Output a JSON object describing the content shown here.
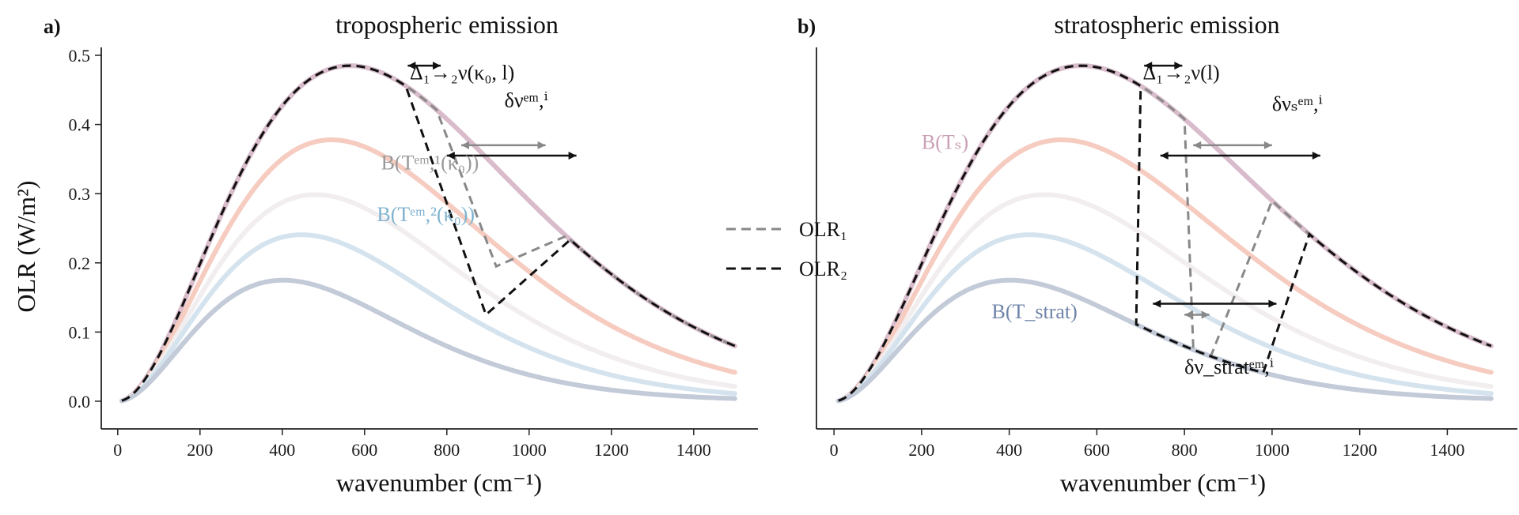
{
  "chart_data": [
    {
      "type": "line",
      "panel_label": "a)",
      "title": "tropospheric emission",
      "xlabel": "wavenumber (cm⁻¹)",
      "ylabel": "OLR (W/m²)",
      "xlim": [
        -40,
        1560
      ],
      "ylim": [
        -0.04,
        0.5
      ],
      "xticks": [
        "0",
        "200",
        "400",
        "600",
        "800",
        "1000",
        "1200",
        "1400"
      ],
      "yticks": [
        "0.0",
        "0.1",
        "0.2",
        "0.3",
        "0.4",
        "0.5"
      ],
      "planck_series": [
        {
          "T": 288,
          "color": "#d9bccb",
          "label": ""
        },
        {
          "T": 265,
          "color": "#f6cbc0",
          "label": ""
        },
        {
          "T": 245,
          "color": "#f2eeef",
          "label": "B(Tᵉᵐ,¹(κ₀))",
          "label_color": "#999999"
        },
        {
          "T": 228,
          "color": "#d4e3ee",
          "label": "B(Tᵉᵐ,²(κ₀))",
          "label_color": "#7fb3d0"
        },
        {
          "T": 205,
          "color": "#c3cad8",
          "label": ""
        }
      ],
      "olr_series": [
        {
          "name": "OLR₁",
          "color": "#888888",
          "window_x": [
            775,
            1090
          ],
          "min_x": 920,
          "min_y": 0.195
        },
        {
          "name": "OLR₂",
          "color": "#111111",
          "window_x": [
            700,
            1100
          ],
          "min_x": 895,
          "min_y": 0.125
        }
      ],
      "annotations": [
        {
          "text": "Δ₁→₂ν(κ₀, l)",
          "x": 710,
          "y": 0.465
        },
        {
          "text": "δνᵉᵐ,ⁱ",
          "x": 940,
          "y": 0.425
        },
        {
          "text": "B(Tᵉᵐ,¹(κ₀))",
          "x": 640,
          "y": 0.335
        },
        {
          "text": "B(Tᵉᵐ,²(κ₀))",
          "x": 630,
          "y": 0.26
        }
      ],
      "arrows": [
        {
          "from": [
            705,
            0.485
          ],
          "to": [
            785,
            0.485
          ],
          "color": "#111111"
        },
        {
          "from": [
            835,
            0.37
          ],
          "to": [
            1040,
            0.37
          ],
          "color": "#888888"
        },
        {
          "from": [
            800,
            0.355
          ],
          "to": [
            1115,
            0.355
          ],
          "color": "#111111"
        }
      ]
    },
    {
      "type": "line",
      "panel_label": "b)",
      "title": "stratospheric emission",
      "xlabel": "wavenumber (cm⁻¹)",
      "ylabel": "",
      "xlim": [
        -40,
        1560
      ],
      "ylim": [
        -0.04,
        0.5
      ],
      "xticks": [
        "0",
        "200",
        "400",
        "600",
        "800",
        "1000",
        "1200",
        "1400"
      ],
      "yticks": [],
      "planck_series": [
        {
          "T": 288,
          "color": "#d9bccb",
          "label": "B(Tₛ)",
          "label_color": "#c9a0b5"
        },
        {
          "T": 265,
          "color": "#f6cbc0",
          "label": ""
        },
        {
          "T": 245,
          "color": "#f2eeef",
          "label": ""
        },
        {
          "T": 228,
          "color": "#d4e3ee",
          "label": ""
        },
        {
          "T": 205,
          "color": "#c3cad8",
          "label": "B(T_strat)",
          "label_color": "#6f84aa"
        }
      ],
      "olr_series": [
        {
          "name": "OLR₁",
          "color": "#888888",
          "window_x": [
            800,
            1000
          ],
          "floor_x": 820,
          "min_x": 860
        },
        {
          "name": "OLR₂",
          "color": "#111111",
          "window_x": [
            700,
            1085
          ],
          "floor_x": 690,
          "min_x": 980
        }
      ],
      "annotations": [
        {
          "text": "Δ₁→₂ν(l)",
          "x": 705,
          "y": 0.465
        },
        {
          "text": "δνₛᵉᵐ,ⁱ",
          "x": 1000,
          "y": 0.42
        },
        {
          "text": "B(Tₛ)",
          "x": 200,
          "y": 0.365
        },
        {
          "text": "B(T_strat)",
          "x": 360,
          "y": 0.12
        },
        {
          "text": "δν_stratᵉᵐ,ⁱ",
          "x": 800,
          "y": 0.04
        }
      ],
      "arrows": [
        {
          "from": [
            708,
            0.485
          ],
          "to": [
            795,
            0.485
          ],
          "color": "#111111"
        },
        {
          "from": [
            820,
            0.37
          ],
          "to": [
            1000,
            0.37
          ],
          "color": "#888888"
        },
        {
          "from": [
            745,
            0.355
          ],
          "to": [
            1110,
            0.355
          ],
          "color": "#111111"
        },
        {
          "from": [
            728,
            0.141
          ],
          "to": [
            1010,
            0.141
          ],
          "color": "#111111"
        },
        {
          "from": [
            800,
            0.125
          ],
          "to": [
            857,
            0.125
          ],
          "color": "#888888"
        }
      ]
    }
  ],
  "legend": {
    "placement": "center",
    "items": [
      {
        "label": "OLR₁",
        "color": "#888888",
        "dash": true
      },
      {
        "label": "OLR₂",
        "color": "#111111",
        "dash": true
      }
    ]
  }
}
